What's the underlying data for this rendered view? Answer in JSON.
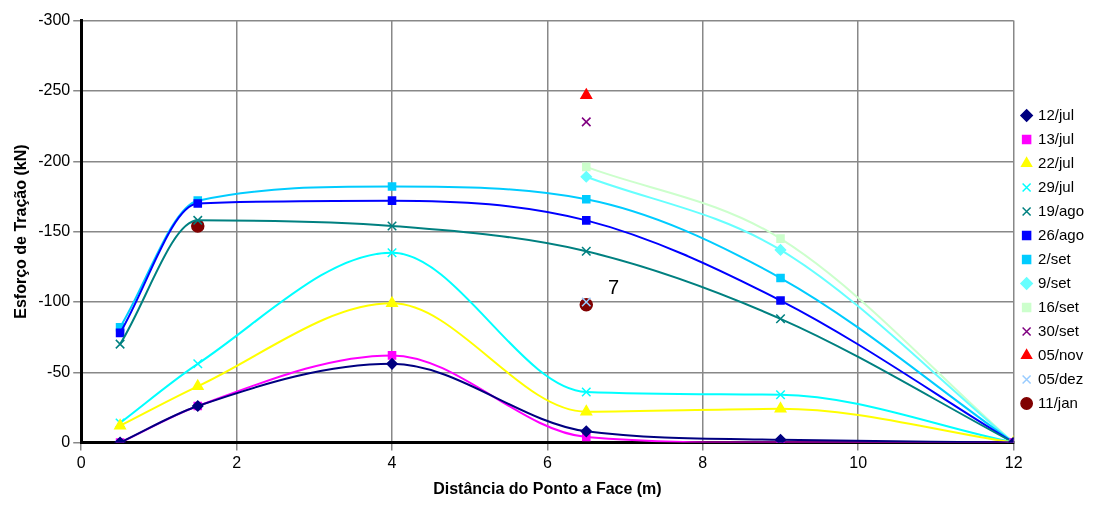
{
  "chart_data": {
    "type": "line",
    "xlabel": "Distância do Ponto a Face (m)",
    "ylabel": "Esforço de Tração (kN)",
    "xlim": [
      0,
      12
    ],
    "xticks": [
      0,
      2,
      4,
      6,
      8,
      10,
      12
    ],
    "ylim": [
      0,
      -300
    ],
    "yticks": [
      -300,
      -250,
      -200,
      -150,
      -100,
      -50,
      0
    ],
    "grid": true,
    "legend": "right",
    "annotations": [
      "7"
    ],
    "series": [
      {
        "name": "12/jul",
        "color": "#000080",
        "marker": "diamond",
        "x": [
          0.5,
          1.5,
          4,
          6.5,
          9,
          12
        ],
        "values": [
          0,
          -26,
          -56,
          -8,
          -2,
          0
        ]
      },
      {
        "name": "13/jul",
        "color": "#ff00ff",
        "marker": "square",
        "x": [
          0.5,
          1.5,
          4,
          6.5,
          9,
          12
        ],
        "values": [
          0,
          -26,
          -62,
          -4,
          0,
          0
        ]
      },
      {
        "name": "22/jul",
        "color": "#ffff00",
        "marker": "triangle",
        "x": [
          0.5,
          1.5,
          4,
          6.5,
          9,
          12
        ],
        "values": [
          -12,
          -40,
          -99,
          -22,
          -24,
          0
        ]
      },
      {
        "name": "29/jul",
        "color": "#00ffff",
        "marker": "cross",
        "x": [
          0.5,
          1.5,
          4,
          6.5,
          9,
          12
        ],
        "values": [
          -14,
          -56,
          -135,
          -36,
          -34,
          0
        ]
      },
      {
        "name": "19/ago",
        "color": "#008080",
        "marker": "cross",
        "x": [
          0.5,
          1.5,
          4,
          6.5,
          9,
          12
        ],
        "values": [
          -70,
          -158,
          -154,
          -136,
          -88,
          0
        ]
      },
      {
        "name": "26/ago",
        "color": "#0000ff",
        "marker": "square",
        "x": [
          0.5,
          1.5,
          4,
          6.5,
          9,
          12
        ],
        "values": [
          -78,
          -170,
          -172,
          -158,
          -101,
          0
        ]
      },
      {
        "name": "2/set",
        "color": "#00ccff",
        "marker": "square",
        "x": [
          0.5,
          1.5,
          4,
          6.5,
          9,
          12
        ],
        "values": [
          -82,
          -172,
          -182,
          -173,
          -117,
          0
        ]
      },
      {
        "name": "9/set",
        "color": "#66ffff",
        "marker": "diamond",
        "x": [
          6.5,
          9,
          12
        ],
        "values": [
          -189,
          -137,
          0
        ]
      },
      {
        "name": "16/set",
        "color": "#ccffcc",
        "marker": "square",
        "x": [
          6.5,
          9,
          12
        ],
        "values": [
          -196,
          -145,
          0
        ]
      },
      {
        "name": "30/set",
        "color": "#800080",
        "marker": "cross",
        "x": [
          6.5
        ],
        "values": [
          -228
        ]
      },
      {
        "name": "05/nov",
        "color": "#ff0000",
        "marker": "triangle",
        "x": [
          6.5
        ],
        "values": [
          -247
        ]
      },
      {
        "name": "05/dez",
        "color": "#99ccff",
        "marker": "cross",
        "x": [
          6.5
        ],
        "values": [
          -100
        ]
      },
      {
        "name": "11/jan",
        "color": "#800000",
        "marker": "circle",
        "type": "scatter",
        "x": [
          1.5,
          6.5
        ],
        "values": [
          -154,
          -98
        ]
      }
    ]
  }
}
